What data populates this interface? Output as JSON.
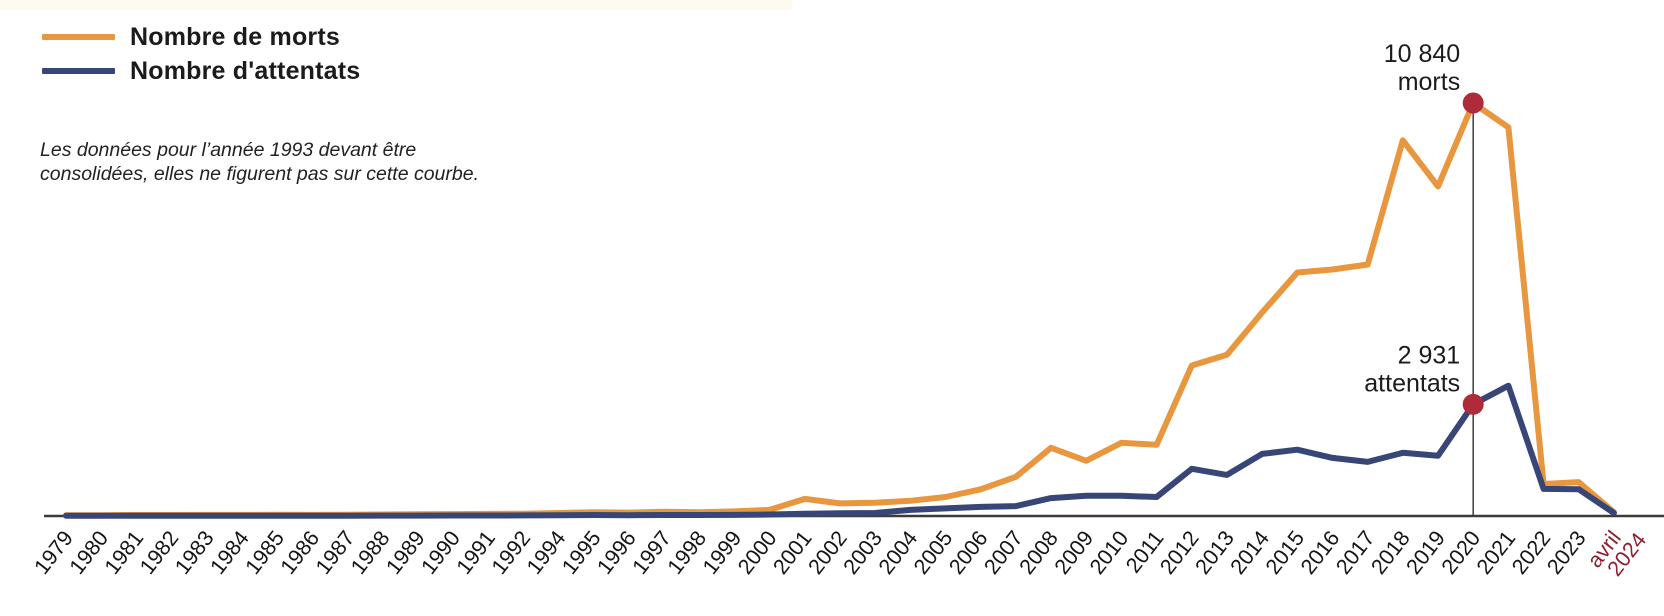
{
  "legend": {
    "items": [
      {
        "label": "Nombre de morts",
        "color": "#E8973F"
      },
      {
        "label": "Nombre d'attentats",
        "color": "#374676"
      }
    ]
  },
  "note": "Les données pour l’année 1993 devant être consolidées, elles ne figurent pas sur cette courbe.",
  "annotations": {
    "marked_category": "2020",
    "marker_color": "#AE2C3A",
    "morts": {
      "value": "10 840",
      "unit": "morts"
    },
    "attentats": {
      "value": "2 931",
      "unit": "attentats"
    }
  },
  "axis": {
    "line_color": "#3b3b3b",
    "tick_label_color": "#151515",
    "highlight_tick_label": "avril 2024",
    "highlight_tick_color": "#8E1F2F"
  },
  "chart_data": {
    "type": "line",
    "title": "",
    "xlabel": "",
    "ylabel": "",
    "grid": false,
    "legend_position": "top-left",
    "ylim": [
      0,
      11000
    ],
    "categories": [
      "1979",
      "1980",
      "1981",
      "1982",
      "1983",
      "1984",
      "1985",
      "1986",
      "1987",
      "1988",
      "1989",
      "1990",
      "1991",
      "1992",
      "1994",
      "1995",
      "1996",
      "1997",
      "1998",
      "1999",
      "2000",
      "2001",
      "2002",
      "2003",
      "2004",
      "2005",
      "2006",
      "2007",
      "2008",
      "2009",
      "2010",
      "2011",
      "2012",
      "2013",
      "2014",
      "2015",
      "2016",
      "2017",
      "2018",
      "2019",
      "2020",
      "2021",
      "2022",
      "2023",
      "avril 2024"
    ],
    "series": [
      {
        "name": "Nombre de morts",
        "color": "#E8973F",
        "values": [
          20,
          20,
          25,
          25,
          30,
          30,
          35,
          30,
          35,
          40,
          45,
          50,
          55,
          60,
          80,
          100,
          90,
          110,
          100,
          120,
          160,
          450,
          330,
          350,
          400,
          500,
          700,
          1030,
          1790,
          1450,
          1920,
          1870,
          3950,
          4230,
          5340,
          6390,
          6470,
          6600,
          9860,
          8650,
          10840,
          10200,
          840,
          890,
          100
        ]
      },
      {
        "name": "Nombre d'attentats",
        "color": "#374676",
        "values": [
          5,
          5,
          5,
          5,
          8,
          8,
          8,
          8,
          8,
          10,
          10,
          12,
          12,
          15,
          20,
          25,
          20,
          25,
          25,
          30,
          40,
          60,
          70,
          80,
          160,
          200,
          240,
          260,
          470,
          530,
          530,
          500,
          1240,
          1080,
          1630,
          1740,
          1525,
          1420,
          1660,
          1580,
          2931,
          3420,
          710,
          700,
          80
        ]
      }
    ]
  }
}
